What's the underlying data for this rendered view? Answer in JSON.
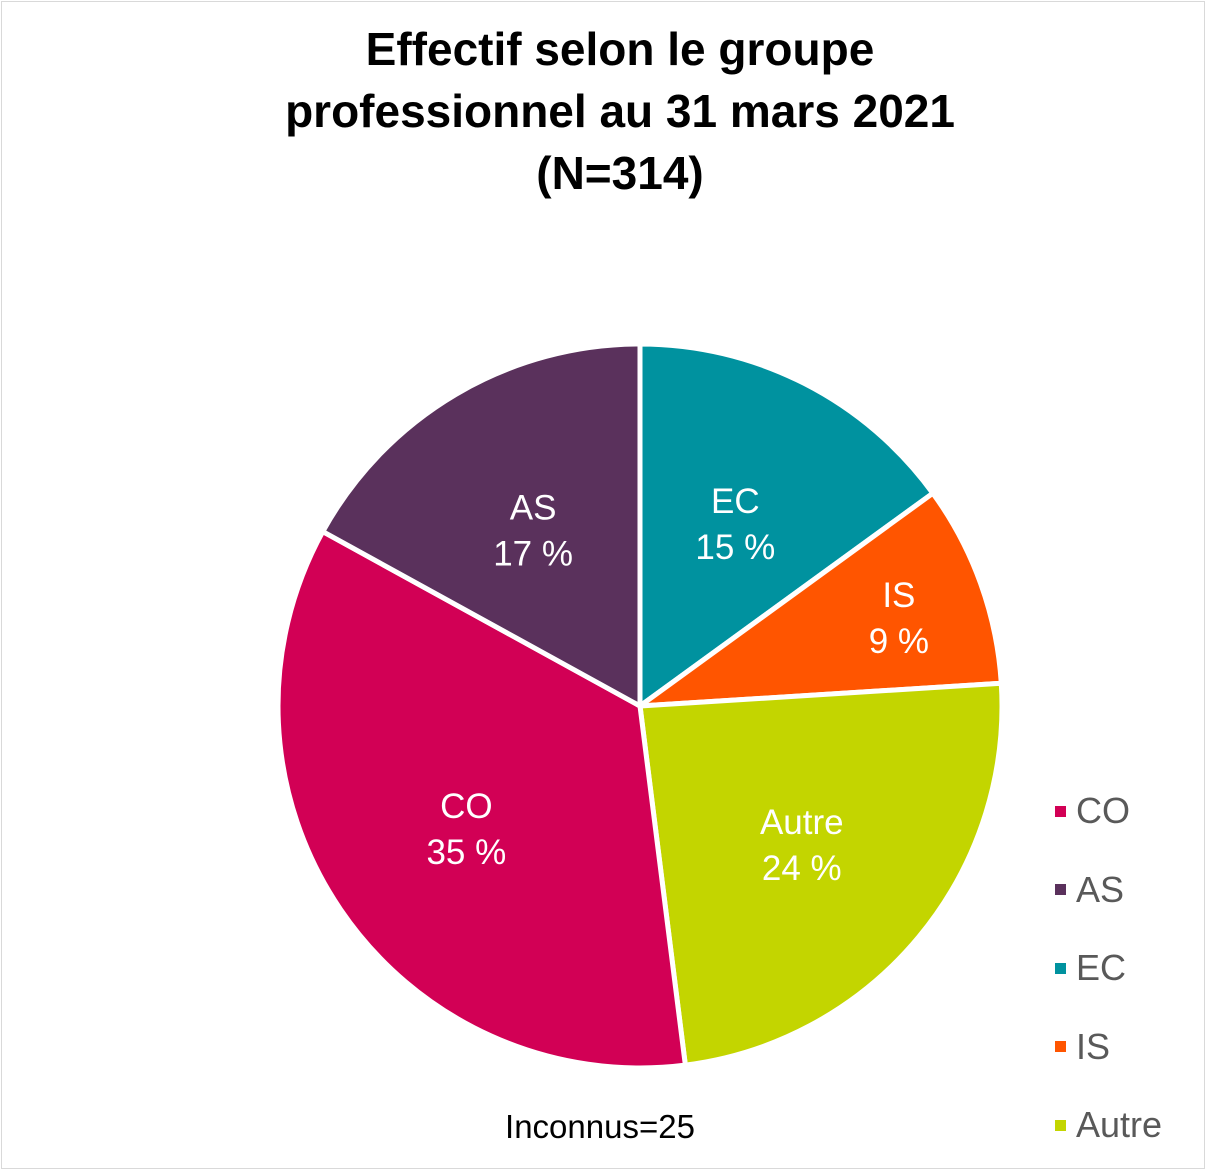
{
  "chart_data": {
    "type": "pie",
    "title": [
      "Effectif selon le groupe",
      "professionnel au 31 mars 2021",
      "(N=314)"
    ],
    "slices": [
      {
        "name": "EC",
        "value": 15,
        "label": "15 %",
        "color": "#00929f"
      },
      {
        "name": "IS",
        "value": 9,
        "label": "9 %",
        "color": "#ff5500"
      },
      {
        "name": "Autre",
        "value": 24,
        "label": "24 %",
        "color": "#c3d500"
      },
      {
        "name": "CO",
        "value": 35,
        "label": "35 %",
        "color": "#d20055"
      },
      {
        "name": "AS",
        "value": 17,
        "label": "17 %",
        "color": "#5a315c"
      }
    ],
    "legend": {
      "placement": "bottom-right",
      "items": [
        {
          "name": "CO",
          "color": "#d20055"
        },
        {
          "name": "AS",
          "color": "#5a315c"
        },
        {
          "name": "EC",
          "color": "#00929f"
        },
        {
          "name": "IS",
          "color": "#ff5500"
        },
        {
          "name": "Autre",
          "color": "#c3d500"
        }
      ]
    },
    "note": "Inconnus=25"
  }
}
